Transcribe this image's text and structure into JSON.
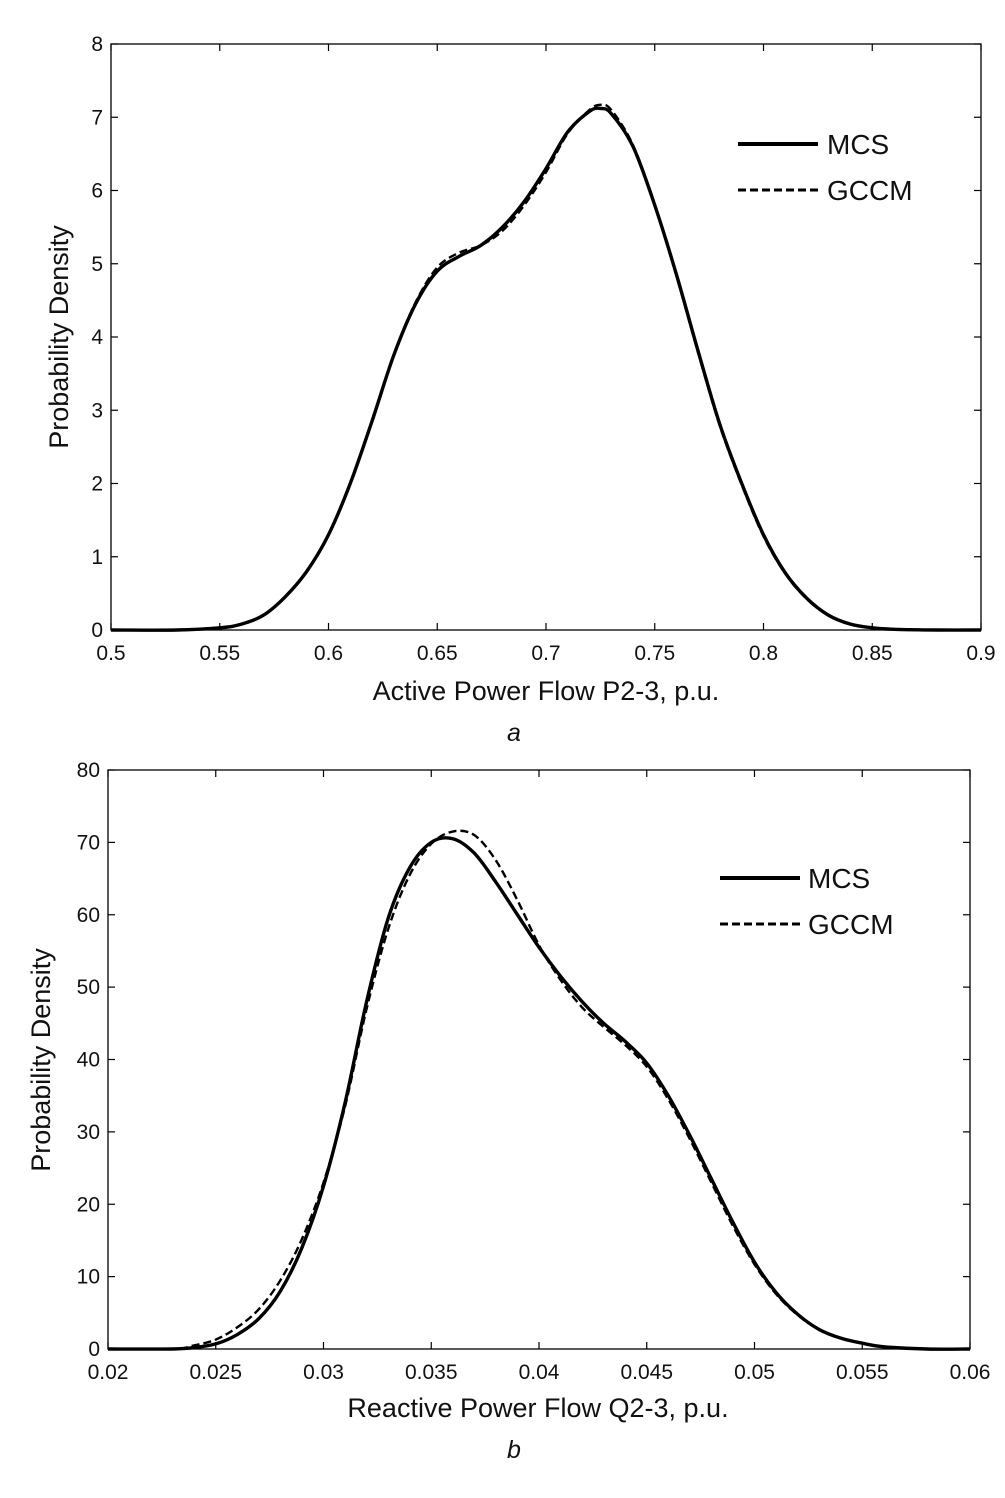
{
  "chart_data": [
    {
      "type": "line",
      "panel_label": "a",
      "xlabel": "Active Power Flow P2-3, p.u.",
      "ylabel": "Probability Density",
      "xlim": [
        0.5,
        0.9
      ],
      "ylim": [
        0,
        8
      ],
      "xticks": [
        "0.5",
        "0.55",
        "0.6",
        "0.65",
        "0.7",
        "0.75",
        "0.8",
        "0.85",
        "0.9"
      ],
      "yticks": [
        "0",
        "1",
        "2",
        "3",
        "4",
        "5",
        "6",
        "7",
        "8"
      ],
      "grid": false,
      "legend_position": "top-right",
      "series": [
        {
          "name": "MCS",
          "style": "solid",
          "x": [
            0.5,
            0.53,
            0.55,
            0.56,
            0.57,
            0.58,
            0.59,
            0.6,
            0.61,
            0.62,
            0.63,
            0.64,
            0.65,
            0.66,
            0.67,
            0.68,
            0.69,
            0.7,
            0.71,
            0.72,
            0.725,
            0.73,
            0.74,
            0.75,
            0.76,
            0.77,
            0.78,
            0.79,
            0.8,
            0.81,
            0.82,
            0.83,
            0.84,
            0.85,
            0.86,
            0.88,
            0.9
          ],
          "y": [
            0,
            0,
            0.03,
            0.08,
            0.2,
            0.45,
            0.8,
            1.3,
            2.0,
            2.85,
            3.75,
            4.45,
            4.9,
            5.1,
            5.25,
            5.5,
            5.85,
            6.3,
            6.8,
            7.08,
            7.12,
            7.05,
            6.6,
            5.8,
            4.85,
            3.8,
            2.8,
            2.0,
            1.3,
            0.78,
            0.43,
            0.2,
            0.08,
            0.03,
            0.01,
            0,
            0
          ]
        },
        {
          "name": "GCCM",
          "style": "dashed",
          "x": [
            0.5,
            0.53,
            0.55,
            0.56,
            0.57,
            0.58,
            0.59,
            0.6,
            0.61,
            0.62,
            0.63,
            0.64,
            0.65,
            0.66,
            0.67,
            0.68,
            0.69,
            0.7,
            0.71,
            0.72,
            0.725,
            0.73,
            0.74,
            0.75,
            0.76,
            0.77,
            0.78,
            0.79,
            0.8,
            0.81,
            0.82,
            0.83,
            0.84,
            0.85,
            0.86,
            0.88,
            0.9
          ],
          "y": [
            0,
            0,
            0.03,
            0.08,
            0.2,
            0.45,
            0.8,
            1.3,
            2.0,
            2.85,
            3.75,
            4.47,
            4.95,
            5.15,
            5.25,
            5.45,
            5.8,
            6.25,
            6.78,
            7.1,
            7.17,
            7.1,
            6.62,
            5.8,
            4.83,
            3.78,
            2.78,
            1.98,
            1.28,
            0.77,
            0.42,
            0.2,
            0.08,
            0.03,
            0.01,
            0,
            0
          ]
        }
      ]
    },
    {
      "type": "line",
      "panel_label": "b",
      "xlabel": "Reactive Power Flow Q2-3, p.u.",
      "ylabel": "Probability Density",
      "xlim": [
        0.02,
        0.06
      ],
      "ylim": [
        0,
        80
      ],
      "xticks": [
        "0.02",
        "0.025",
        "0.03",
        "0.035",
        "0.04",
        "0.045",
        "0.05",
        "0.055",
        "0.06"
      ],
      "yticks": [
        "0",
        "10",
        "20",
        "30",
        "40",
        "50",
        "60",
        "70",
        "80"
      ],
      "grid": false,
      "legend_position": "top-right",
      "series": [
        {
          "name": "MCS",
          "style": "solid",
          "x": [
            0.02,
            0.023,
            0.024,
            0.025,
            0.026,
            0.027,
            0.028,
            0.029,
            0.03,
            0.031,
            0.032,
            0.033,
            0.034,
            0.035,
            0.036,
            0.037,
            0.038,
            0.039,
            0.04,
            0.041,
            0.042,
            0.043,
            0.044,
            0.045,
            0.046,
            0.047,
            0.048,
            0.049,
            0.05,
            0.051,
            0.052,
            0.053,
            0.054,
            0.055,
            0.056,
            0.058,
            0.06
          ],
          "y": [
            0,
            0,
            0.2,
            0.7,
            2.0,
            4.2,
            8.0,
            14.0,
            22.5,
            34.0,
            48.0,
            59.5,
            66.5,
            70.0,
            70.5,
            68.5,
            64.5,
            60.0,
            55.5,
            51.5,
            48.0,
            45.0,
            42.5,
            39.5,
            35.0,
            29.5,
            23.5,
            17.5,
            12.0,
            7.8,
            4.8,
            2.7,
            1.5,
            0.8,
            0.3,
            0,
            0
          ]
        },
        {
          "name": "GCCM",
          "style": "dashed",
          "x": [
            0.02,
            0.023,
            0.024,
            0.025,
            0.026,
            0.027,
            0.028,
            0.029,
            0.03,
            0.031,
            0.032,
            0.033,
            0.034,
            0.035,
            0.036,
            0.037,
            0.038,
            0.039,
            0.04,
            0.041,
            0.042,
            0.043,
            0.044,
            0.045,
            0.046,
            0.047,
            0.048,
            0.049,
            0.05,
            0.051,
            0.052,
            0.053,
            0.054,
            0.055,
            0.056,
            0.058,
            0.06
          ],
          "y": [
            0,
            0,
            0.5,
            1.3,
            3.0,
            5.5,
            9.5,
            15.2,
            23.0,
            33.5,
            47.0,
            58.0,
            65.5,
            69.8,
            71.5,
            71.0,
            67.5,
            62.0,
            55.8,
            51.0,
            47.2,
            44.5,
            42.0,
            39.0,
            34.5,
            29.0,
            23.0,
            17.0,
            11.7,
            7.6,
            4.7,
            2.7,
            1.5,
            0.8,
            0.3,
            0,
            0
          ]
        }
      ]
    }
  ]
}
